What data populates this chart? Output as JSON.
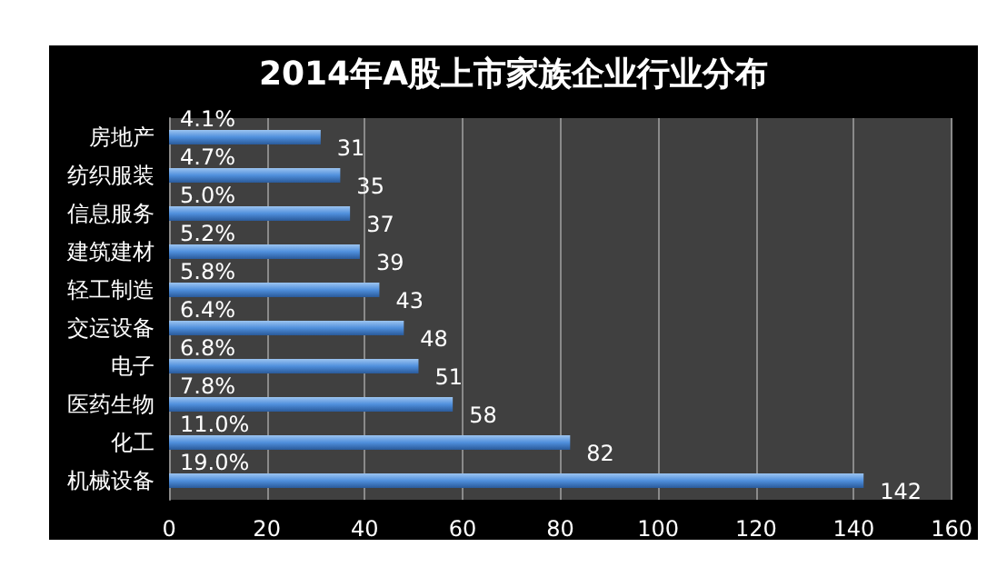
{
  "chart_data": {
    "type": "bar",
    "orientation": "horizontal",
    "title": "2014年A股上市家族企业行业分布",
    "categories": [
      "房地产",
      "纺织服装",
      "信息服务",
      "建筑建材",
      "轻工制造",
      "交运设备",
      "电子",
      "医药生物",
      "化工",
      "机械设备"
    ],
    "values": [
      31,
      35,
      37,
      39,
      43,
      48,
      51,
      58,
      82,
      142
    ],
    "color": "#4f8fdc",
    "data_labels": true,
    "xlim": [
      0,
      160
    ],
    "xticks": [
      0,
      20,
      40,
      60,
      80,
      100,
      120,
      140,
      160
    ],
    "grid": "x",
    "annotations": [
      {
        "text": "4.1%",
        "y": "房地产"
      },
      {
        "text": "4.7%",
        "y": "纺织服装"
      },
      {
        "text": "5.0%",
        "y": "信息服务"
      },
      {
        "text": "5.2%",
        "y": "建筑建材"
      },
      {
        "text": "5.8%",
        "y": "轻工制造"
      },
      {
        "text": "6.4%",
        "y": "交运设备"
      },
      {
        "text": "6.8%",
        "y": "电子"
      },
      {
        "text": "7.8%",
        "y": "医药生物"
      },
      {
        "text": "11.0%",
        "y": "化工"
      },
      {
        "text": "19.0%",
        "y": "机械设备"
      }
    ]
  }
}
